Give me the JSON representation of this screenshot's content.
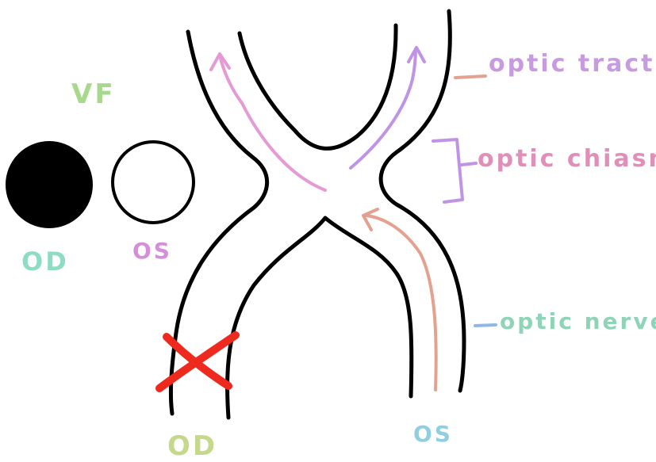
{
  "diagram": {
    "vf_label": "VF",
    "vf_od_label": "OD",
    "vf_os_label": "OS",
    "bottom_od_label": "OD",
    "bottom_os_label": "OS",
    "optic_tract_label": "optic tract",
    "optic_chiasm_label": "optic chiasm",
    "optic_nerve_label": "optic nerve",
    "colors": {
      "outline": "#000000",
      "lesion": "#ee2a1e",
      "pink_pathway": "#e49ad5",
      "purple_pathway": "#bf93e6",
      "salmon_pathway": "#e4a18f",
      "visual_field_od": "#000000",
      "visual_field_os": "#ffffff"
    },
    "icons": {
      "lesion": "x-mark-icon",
      "arrow": "arrow-icon"
    }
  }
}
